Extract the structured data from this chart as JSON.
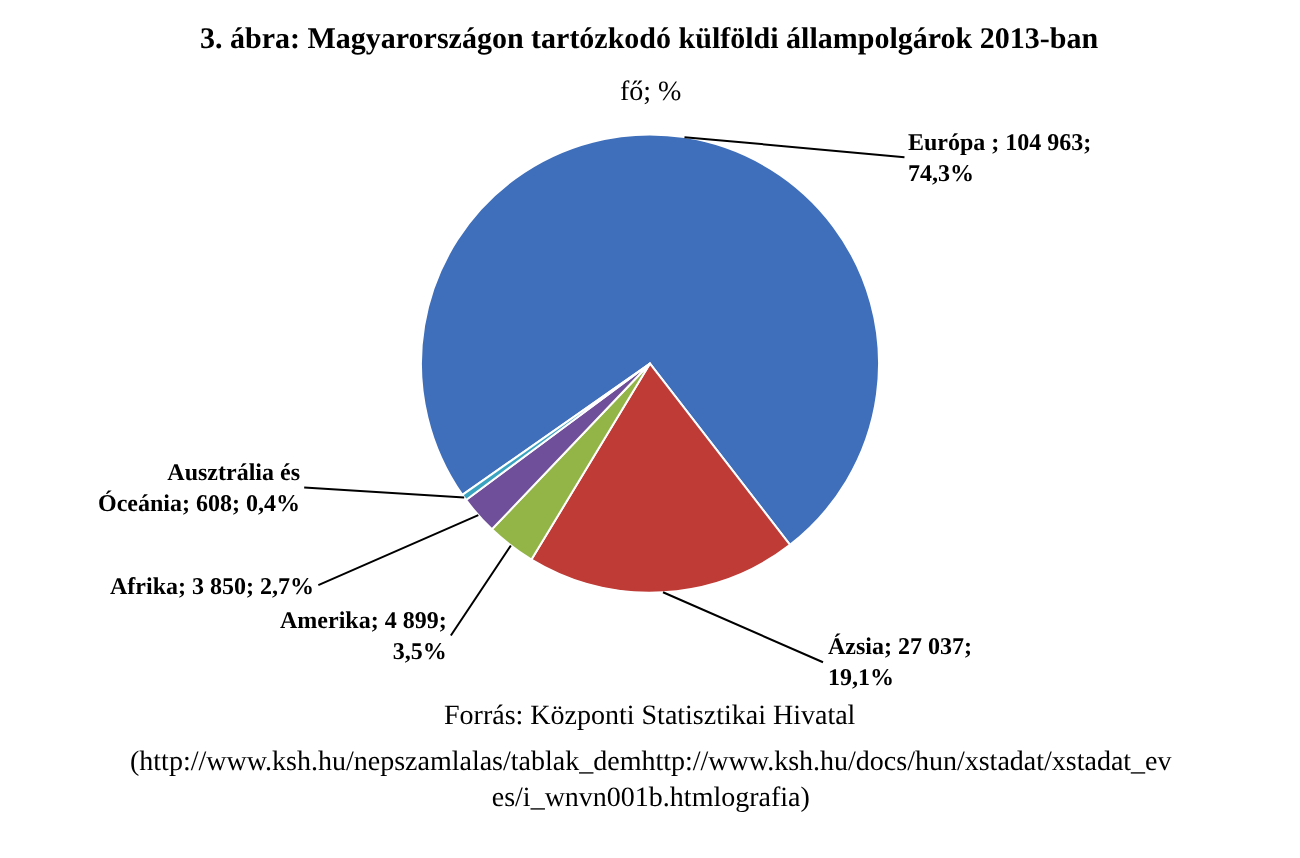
{
  "chart_data": {
    "type": "pie",
    "title": "3. ábra: Magyarországon tartózkodó külföldi állampolgárok 2013-ban",
    "subtitle": "fő; %",
    "categories": [
      "Európa",
      "Ázsia",
      "Amerika",
      "Afrika",
      "Ausztrália és Óceánia"
    ],
    "values": [
      104963,
      27037,
      4899,
      3850,
      608
    ],
    "colors": [
      "#3f6fba",
      "#be3b36",
      "#93b548",
      "#6f4f9a",
      "#3aa3c0"
    ],
    "value_labels": [
      " ; 104 963;\n74,3%",
      "; 27 037;\n19,1%",
      "; 4 899;\n3,5%",
      "; 3 850; 2,7%",
      "; 608; 0,4%"
    ],
    "legend": false,
    "annotations": [
      "Forrás: Központi Statisztikai Hivatal",
      "(http://www.ksh.hu/nepszamlalas/tablak_demhttp://www.ksh.hu/docs/hun/xstadat/xstadat_ev\nes/i_wnvn001b.htmlografia)"
    ]
  }
}
